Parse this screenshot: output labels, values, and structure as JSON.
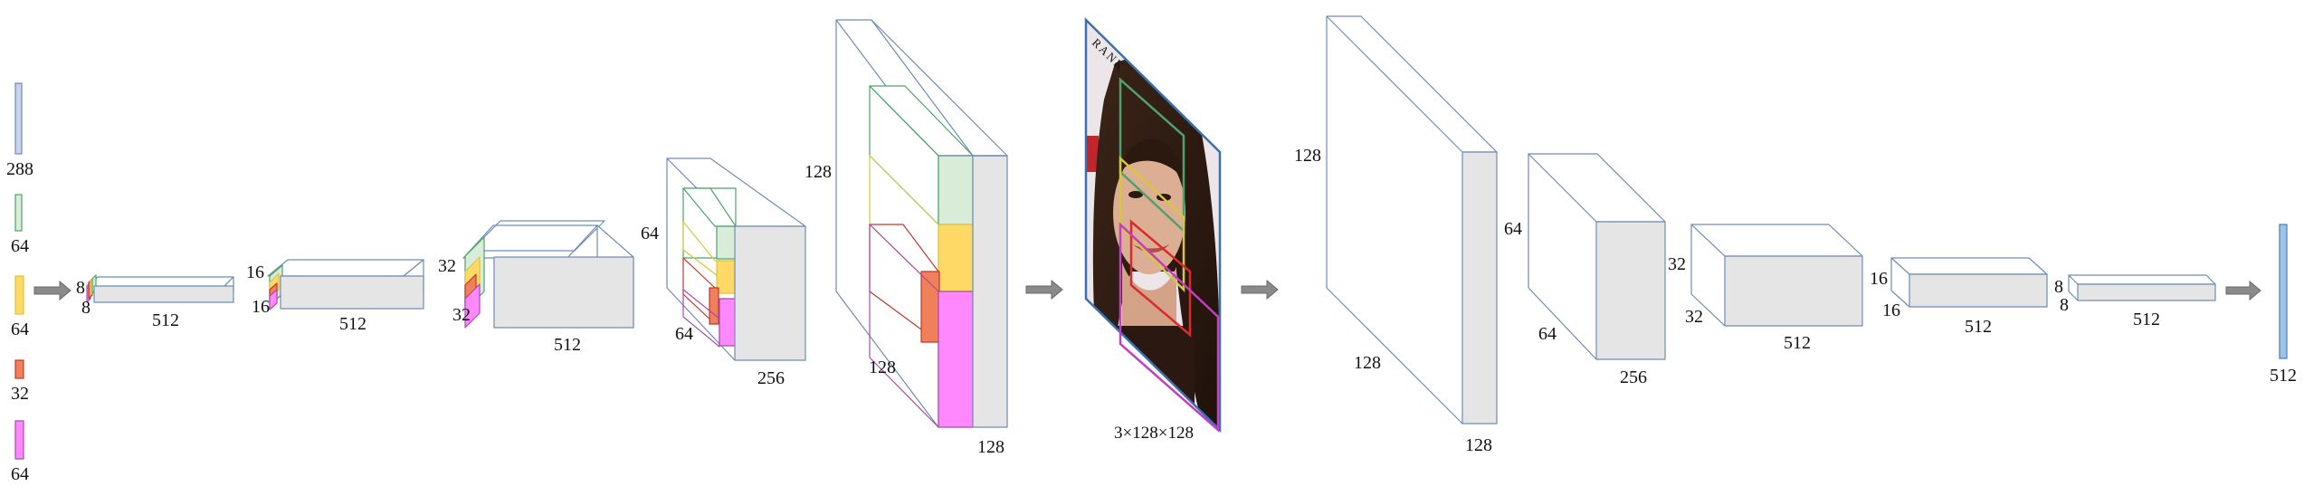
{
  "colors": {
    "edge": "#6f8db3",
    "face": "#e6e5e6",
    "white": "#ffffff",
    "c288": "#c9d3ec",
    "c64a": "#d9ecd8",
    "c64b": "#ffd966",
    "c32": "#f0805a",
    "c64c": "#ff88ff",
    "green": "#4fa26a",
    "yellow": "#d6c83c",
    "red": "#c0392b",
    "magenta": "#a64ca6",
    "output": "#9dc3e6",
    "arrow": "#8a8a8a"
  },
  "input_bars": {
    "bar_288": "288",
    "bar_64_green": "64",
    "bar_64_yellow": "64",
    "bar_32": "32",
    "bar_64_magenta": "64"
  },
  "encoder": {
    "stage1": {
      "depth": "8",
      "height": "8",
      "width": "512"
    },
    "stage2": {
      "depth": "16",
      "height": "16",
      "width": "512"
    },
    "stage3": {
      "depth": "32",
      "height": "32",
      "width": "512"
    },
    "stage4": {
      "depth": "64",
      "height": "64",
      "width": "256"
    },
    "stage5": {
      "depth": "128",
      "height": "128",
      "width": "128"
    }
  },
  "image": {
    "label": "3×128×128",
    "corner_text": "RANK"
  },
  "decoder": {
    "stage1": {
      "depth": "128",
      "height": "128",
      "width": "128"
    },
    "stage2": {
      "depth": "64",
      "height": "64",
      "width": "256"
    },
    "stage3": {
      "depth": "32",
      "height": "32",
      "width": "512"
    },
    "stage4": {
      "depth": "16",
      "height": "16",
      "width": "512"
    },
    "stage5": {
      "depth": "8",
      "height": "8",
      "width": "512"
    }
  },
  "output": {
    "label": "512"
  }
}
